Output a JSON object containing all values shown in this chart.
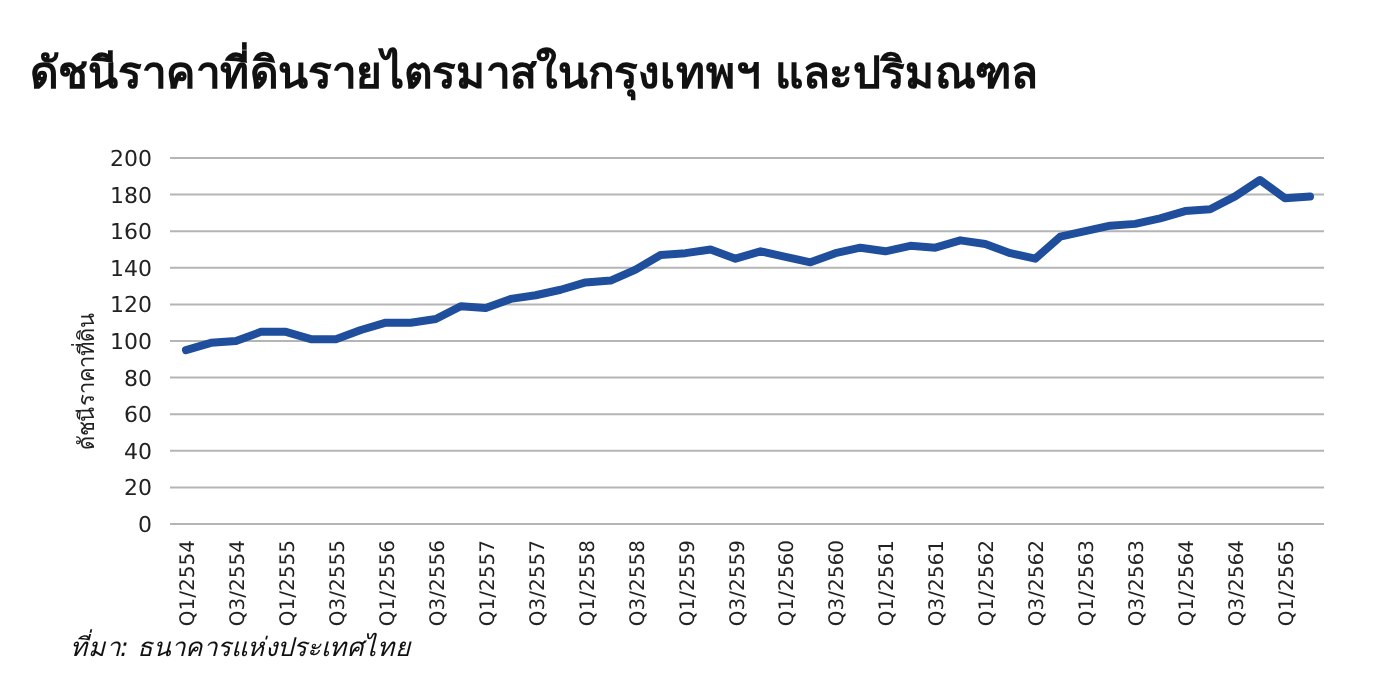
{
  "chart_data": {
    "type": "line",
    "title": "ดัชนีราคาที่ดินรายไตรมาสในกรุงเทพฯ และปริมณฑล",
    "ylabel": "ดัชนีราคาที่ดิน",
    "categories": [
      "Q1/2554",
      null,
      "Q3/2554",
      null,
      "Q1/2555",
      null,
      "Q3/2555",
      null,
      "Q1/2556",
      null,
      "Q3/2556",
      null,
      "Q1/2557",
      null,
      "Q3/2557",
      null,
      "Q1/2558",
      null,
      "Q3/2558",
      null,
      "Q1/2559",
      null,
      "Q3/2559",
      null,
      "Q1/2560",
      null,
      "Q3/2560",
      null,
      "Q1/2561",
      null,
      "Q3/2561",
      null,
      "Q1/2562",
      null,
      "Q3/2562",
      null,
      "Q1/2563",
      null,
      "Q3/2563",
      null,
      "Q1/2564",
      null,
      "Q3/2564",
      null,
      "Q1/2565",
      null
    ],
    "series": [
      {
        "color": "#1f4e9c",
        "values": [
          95,
          99,
          100,
          105,
          105,
          101,
          101,
          106,
          110,
          110,
          112,
          119,
          118,
          123,
          125,
          128,
          132,
          133,
          139,
          147,
          148,
          150,
          145,
          149,
          146,
          143,
          148,
          151,
          149,
          152,
          151,
          155,
          153,
          148,
          145,
          157,
          160,
          163,
          164,
          167,
          171,
          172,
          179,
          188,
          178,
          179
        ]
      }
    ],
    "ylim": [
      0,
      200
    ],
    "yticks": [
      0,
      20,
      40,
      60,
      80,
      100,
      120,
      140,
      160,
      180,
      200
    ],
    "grid": "y",
    "annotations": [
      "ที่มา: ธนาคารแห่งประเทศไทย"
    ]
  }
}
